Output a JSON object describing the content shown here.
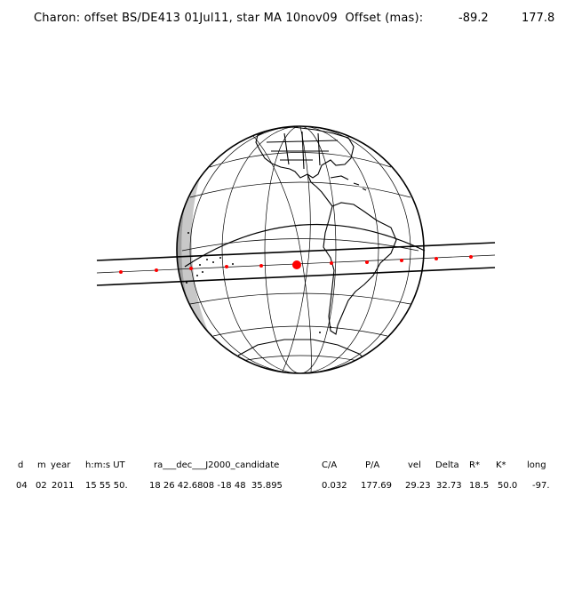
{
  "header": {
    "title": "Charon: offset BS/DE413 01Jul11, star MA 10nov09  Offset (mas):",
    "offset_x": "-89.2",
    "offset_y": "177.8"
  },
  "table": {
    "headers": [
      "d",
      "m",
      "year",
      "h:m:s UT",
      "ra___dec___J2000_candidate",
      "C/A",
      "P/A",
      "vel",
      "Delta",
      "R*",
      "K*",
      "long"
    ],
    "values": [
      "04",
      "02",
      "2011",
      "15 55 50.",
      "18 26 42.6808 -18 48  35.895",
      "0.032",
      "177.69",
      "29.23",
      "32.73",
      "18.5",
      "50.0",
      "-97."
    ]
  },
  "colors": {
    "ink": "#000000",
    "track_dots": "#ff0000",
    "night_shade": "#c8c8c8",
    "deep_shade": "#a0a0a0"
  }
}
